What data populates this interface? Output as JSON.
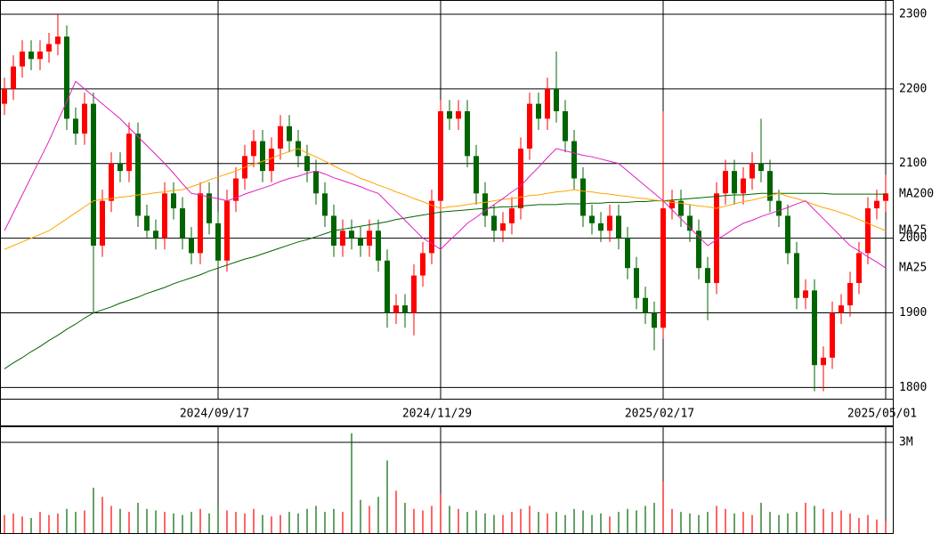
{
  "chart_data": [
    {
      "type": "candlestick",
      "categories": [
        null,
        null,
        null,
        null,
        null,
        null,
        null,
        null,
        null,
        null,
        null,
        null,
        null,
        null,
        null,
        null,
        null,
        null,
        null,
        null,
        null,
        null,
        null,
        null,
        "2024/09/17",
        null,
        null,
        null,
        null,
        null,
        null,
        null,
        null,
        null,
        null,
        null,
        null,
        null,
        null,
        null,
        null,
        null,
        null,
        null,
        null,
        null,
        null,
        null,
        null,
        "2024/11/29",
        null,
        null,
        null,
        null,
        null,
        null,
        null,
        null,
        null,
        null,
        null,
        null,
        null,
        null,
        null,
        null,
        null,
        null,
        null,
        null,
        null,
        null,
        null,
        null,
        "2025/02/17",
        null,
        null,
        null,
        null,
        null,
        null,
        null,
        null,
        null,
        null,
        null,
        null,
        null,
        null,
        null,
        null,
        null,
        null,
        null,
        null,
        null,
        null,
        null,
        null,
        "2025/05/01"
      ],
      "open": [
        2180,
        2200,
        2230,
        2250,
        2240,
        2250,
        2260,
        2270,
        2160,
        2140,
        2180,
        1990,
        2050,
        2100,
        2090,
        2140,
        2030,
        2010,
        2000,
        2060,
        2040,
        2000,
        1980,
        2060,
        2020,
        1970,
        2050,
        2080,
        2110,
        2130,
        2090,
        2120,
        2150,
        2130,
        2110,
        2090,
        2060,
        2030,
        1990,
        2010,
        2000,
        1990,
        2010,
        1970,
        1900,
        1910,
        1900,
        1950,
        1980,
        2050,
        2170,
        2160,
        2170,
        2110,
        2060,
        2030,
        2010,
        2020,
        2040,
        2120,
        2180,
        2160,
        2200,
        2170,
        2130,
        2080,
        2030,
        2020,
        2010,
        2030,
        2000,
        1960,
        1920,
        1900,
        1880,
        2040,
        2050,
        2030,
        2010,
        1960,
        1940,
        2060,
        2090,
        2060,
        2080,
        2100,
        2090,
        2050,
        2030,
        1980,
        1920,
        1930,
        1830,
        1840,
        1900,
        1910,
        1940,
        1980,
        2040,
        2050
      ],
      "high": [
        2215,
        2245,
        2265,
        2265,
        2265,
        2275,
        2300,
        2285,
        2175,
        2195,
        2195,
        2065,
        2115,
        2115,
        2155,
        2155,
        2045,
        2025,
        2075,
        2075,
        2055,
        2015,
        2075,
        2075,
        2035,
        2065,
        2095,
        2125,
        2145,
        2145,
        2135,
        2165,
        2165,
        2145,
        2125,
        2105,
        2075,
        2045,
        2025,
        2025,
        2015,
        2025,
        2025,
        1985,
        1925,
        1925,
        1965,
        1995,
        2065,
        2185,
        2185,
        2185,
        2185,
        2125,
        2075,
        2045,
        2035,
        2055,
        2135,
        2195,
        2195,
        2215,
        2250,
        2185,
        2145,
        2095,
        2045,
        2035,
        2045,
        2045,
        2015,
        1975,
        1935,
        1915,
        2170,
        2065,
        2065,
        2045,
        2025,
        1975,
        2075,
        2105,
        2105,
        2095,
        2115,
        2160,
        2105,
        2065,
        2045,
        1995,
        1945,
        1945,
        1855,
        1915,
        1925,
        1955,
        1995,
        2055,
        2065,
        2085
      ],
      "low": [
        2165,
        2185,
        2215,
        2225,
        2225,
        2235,
        2245,
        2145,
        2125,
        2125,
        1900,
        1975,
        2035,
        2075,
        2075,
        2015,
        2000,
        1985,
        1985,
        2025,
        1985,
        1965,
        1965,
        2005,
        1960,
        1955,
        2035,
        2065,
        2095,
        2075,
        2075,
        2105,
        2115,
        2095,
        2075,
        2045,
        2015,
        1975,
        1975,
        1985,
        1975,
        1975,
        1955,
        1880,
        1885,
        1880,
        1870,
        1935,
        1965,
        2035,
        2145,
        2145,
        2095,
        2045,
        2015,
        1995,
        1995,
        2005,
        2025,
        2105,
        2145,
        2145,
        2155,
        2115,
        2065,
        2015,
        2005,
        1995,
        1995,
        1985,
        1945,
        1905,
        1885,
        1850,
        1865,
        2025,
        2015,
        1995,
        1945,
        1890,
        1925,
        2045,
        2045,
        2045,
        2065,
        2075,
        2035,
        2015,
        1965,
        1905,
        1905,
        1795,
        1795,
        1825,
        1885,
        1895,
        1925,
        1965,
        2025,
        2035
      ],
      "close": [
        2200,
        2230,
        2250,
        2240,
        2250,
        2260,
        2270,
        2160,
        2140,
        2180,
        1990,
        2050,
        2100,
        2090,
        2140,
        2030,
        2010,
        2000,
        2060,
        2040,
        2000,
        1980,
        2060,
        2020,
        1970,
        2050,
        2080,
        2110,
        2130,
        2090,
        2120,
        2150,
        2130,
        2110,
        2090,
        2060,
        2030,
        1990,
        2010,
        2000,
        1990,
        2010,
        1970,
        1900,
        1910,
        1900,
        1950,
        1980,
        2050,
        2170,
        2160,
        2170,
        2110,
        2060,
        2030,
        2010,
        2020,
        2040,
        2120,
        2180,
        2160,
        2200,
        2170,
        2130,
        2080,
        2030,
        2020,
        2010,
        2030,
        2000,
        1960,
        1920,
        1900,
        1880,
        2040,
        2050,
        2030,
        2010,
        1960,
        1940,
        2060,
        2090,
        2060,
        2080,
        2100,
        2090,
        2050,
        2030,
        1980,
        1920,
        1930,
        1830,
        1840,
        1900,
        1910,
        1940,
        1980,
        2040,
        2050,
        2060
      ],
      "up_color": "#ff0000",
      "down_color": "#006400",
      "lines": [
        {
          "name": "MA200",
          "color": "#006400",
          "values": [
            1825,
            1833,
            1840,
            1848,
            1855,
            1863,
            1870,
            1878,
            1885,
            1893,
            1900,
            1904,
            1908,
            1913,
            1917,
            1921,
            1926,
            1930,
            1934,
            1939,
            1943,
            1947,
            1951,
            1956,
            1960,
            1964,
            1968,
            1972,
            1975,
            1979,
            1983,
            1987,
            1991,
            1995,
            1998,
            2002,
            2006,
            2010,
            2012,
            2014,
            2016,
            2018,
            2020,
            2022,
            2025,
            2027,
            2029,
            2031,
            2033,
            2035,
            2036,
            2037,
            2038,
            2039,
            2040,
            2041,
            2042,
            2042,
            2043,
            2044,
            2045,
            2045,
            2045,
            2046,
            2046,
            2046,
            2047,
            2047,
            2048,
            2048,
            2048,
            2049,
            2049,
            2050,
            2050,
            2051,
            2052,
            2053,
            2054,
            2055,
            2056,
            2057,
            2058,
            2058,
            2059,
            2060,
            2060,
            2060,
            2060,
            2060,
            2060,
            2060,
            2060,
            2059,
            2059,
            2059,
            2059,
            2059,
            2059,
            2059
          ]
        },
        {
          "name": "MA25",
          "color": "#ffa500",
          "values": [
            1985,
            1990,
            1995,
            2000,
            2005,
            2010,
            2018,
            2026,
            2034,
            2042,
            2050,
            2052,
            2053,
            2055,
            2056,
            2058,
            2059,
            2061,
            2062,
            2064,
            2065,
            2069,
            2073,
            2078,
            2082,
            2086,
            2090,
            2095,
            2099,
            2103,
            2107,
            2112,
            2116,
            2120,
            2114,
            2109,
            2103,
            2097,
            2091,
            2086,
            2080,
            2076,
            2071,
            2067,
            2062,
            2058,
            2053,
            2049,
            2044,
            2040,
            2042,
            2043,
            2045,
            2047,
            2048,
            2050,
            2052,
            2053,
            2055,
            2057,
            2058,
            2060,
            2062,
            2063,
            2065,
            2063,
            2062,
            2060,
            2059,
            2057,
            2056,
            2054,
            2053,
            2051,
            2050,
            2048,
            2047,
            2045,
            2043,
            2042,
            2040,
            2043,
            2046,
            2049,
            2051,
            2054,
            2057,
            2060,
            2056,
            2053,
            2049,
            2045,
            2041,
            2038,
            2034,
            2030,
            2025,
            2020,
            2015,
            2010
          ]
        },
        {
          "name": "MA25",
          "color": "#e020c0",
          "values": [
            2010,
            2034,
            2058,
            2082,
            2106,
            2130,
            2157,
            2183,
            2210,
            2200,
            2190,
            2180,
            2170,
            2160,
            2148,
            2136,
            2124,
            2112,
            2100,
            2087,
            2073,
            2060,
            2058,
            2055,
            2053,
            2050,
            2054,
            2059,
            2063,
            2067,
            2071,
            2076,
            2080,
            2083,
            2087,
            2090,
            2086,
            2081,
            2077,
            2073,
            2069,
            2064,
            2060,
            2048,
            2036,
            2024,
            2012,
            2000,
            1993,
            1985,
            1997,
            2008,
            2020,
            2028,
            2037,
            2045,
            2053,
            2062,
            2070,
            2083,
            2095,
            2108,
            2120,
            2117,
            2114,
            2111,
            2109,
            2106,
            2103,
            2100,
            2090,
            2080,
            2070,
            2060,
            2050,
            2038,
            2026,
            2014,
            2002,
            1990,
            1998,
            2005,
            2013,
            2020,
            2024,
            2029,
            2033,
            2037,
            2041,
            2046,
            2050,
            2038,
            2026,
            2014,
            2002,
            1990,
            1983,
            1975,
            1968,
            1960
          ]
        }
      ],
      "ylim": [
        1785,
        2319
      ],
      "yticks": [
        1800,
        1900,
        2000,
        2100,
        2200,
        2300
      ],
      "grid": true
    },
    {
      "type": "bar",
      "values": [
        600000,
        650000,
        550000,
        500000,
        700000,
        600000,
        650000,
        800000,
        700000,
        750000,
        1500000,
        1200000,
        900000,
        800000,
        700000,
        1000000,
        800000,
        750000,
        700000,
        650000,
        600000,
        700000,
        800000,
        650000,
        900000,
        750000,
        700000,
        650000,
        800000,
        600000,
        550000,
        600000,
        700000,
        650000,
        800000,
        900000,
        700000,
        800000,
        700000,
        3300000,
        1100000,
        900000,
        1200000,
        2400000,
        1400000,
        1000000,
        800000,
        750000,
        900000,
        1300000,
        900000,
        800000,
        700000,
        750000,
        650000,
        600000,
        600000,
        700000,
        800000,
        900000,
        700000,
        650000,
        700000,
        600000,
        800000,
        750000,
        600000,
        650000,
        550000,
        700000,
        800000,
        750000,
        900000,
        1000000,
        1700000,
        800000,
        700000,
        650000,
        600000,
        700000,
        900000,
        800000,
        650000,
        700000,
        600000,
        1000000,
        700000,
        600000,
        650000,
        700000,
        1000000,
        900000,
        800000,
        700000,
        750000,
        650000,
        500000,
        600000,
        450000,
        400000
      ],
      "ylim": [
        0,
        3500000
      ],
      "yticks": [
        {
          "value": 3000000,
          "label": "3M"
        }
      ],
      "grid": true
    }
  ]
}
